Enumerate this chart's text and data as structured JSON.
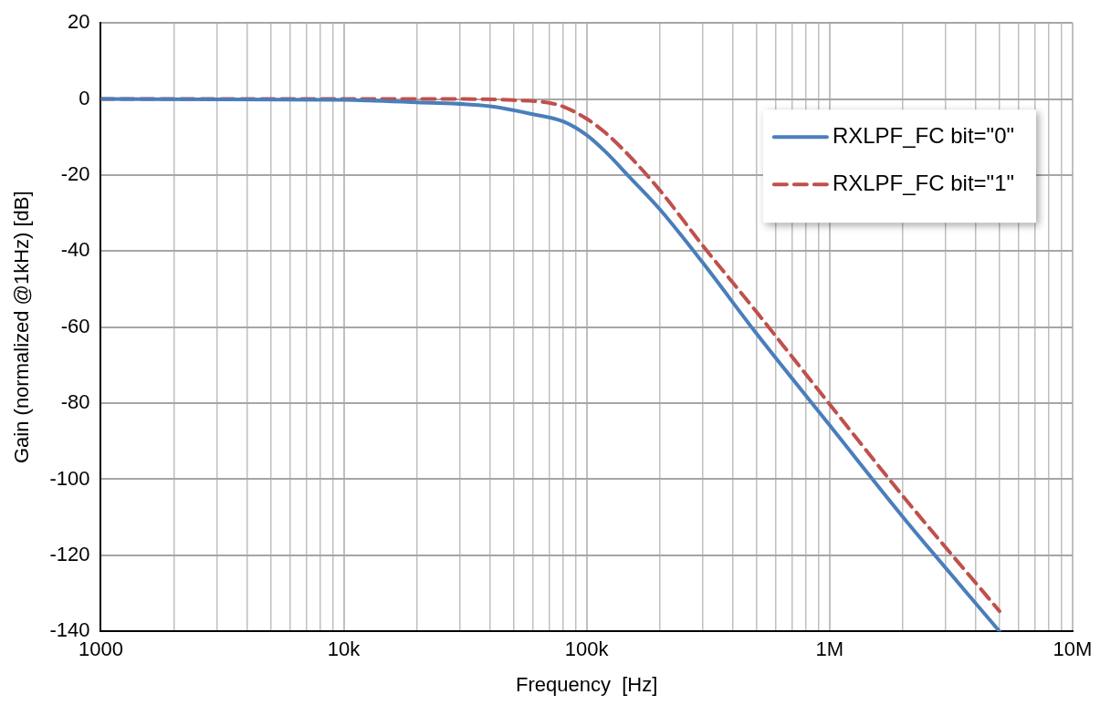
{
  "chart_data": {
    "type": "line",
    "xlabel": "Frequency  [Hz]",
    "ylabel": "Gain (normalized @1kHz) [dB]",
    "log": "x",
    "xlim": [
      1000,
      10000000
    ],
    "xticks": [
      1000,
      {
        "value": 10000,
        "label": "10k"
      },
      {
        "value": 100000,
        "label": "100k"
      },
      {
        "value": 1000000,
        "label": "1M"
      },
      {
        "value": 10000000,
        "label": "10M"
      }
    ],
    "ylim": [
      -140,
      20
    ],
    "yticks": [
      -140,
      -120,
      -100,
      -80,
      -60,
      -40,
      -20,
      0,
      20
    ],
    "grid": true,
    "legend": "top right",
    "marker": "none",
    "series": [
      {
        "name": "RXLPF_FC bit=\"0\"",
        "color": "#4a7ebb",
        "line_style": "solid",
        "x": [
          1000,
          10000,
          20000,
          40000,
          60000,
          80000,
          100000,
          120000,
          150000,
          200000,
          300000,
          500000,
          1000000,
          2000000,
          5000000
        ],
        "values": [
          0,
          -0.2,
          -0.9,
          -1.9,
          -4,
          -5.9,
          -9.5,
          -14,
          -20.5,
          -29,
          -43,
          -61.7,
          -85.8,
          -109.9,
          -140
        ]
      },
      {
        "name": "RXLPF_FC bit=\"1\"",
        "color": "#c0504d",
        "line_style": "dashed",
        "x": [
          1000,
          10000,
          30000,
          50000,
          70000,
          80000,
          100000,
          120000,
          150000,
          200000,
          300000,
          500000,
          1000000,
          2000000,
          5000000
        ],
        "values": [
          0,
          0,
          0,
          -0.3,
          -1,
          -2,
          -5.2,
          -9,
          -15,
          -24,
          -38.5,
          -56,
          -80.3,
          -104.4,
          -134.7
        ]
      }
    ]
  }
}
